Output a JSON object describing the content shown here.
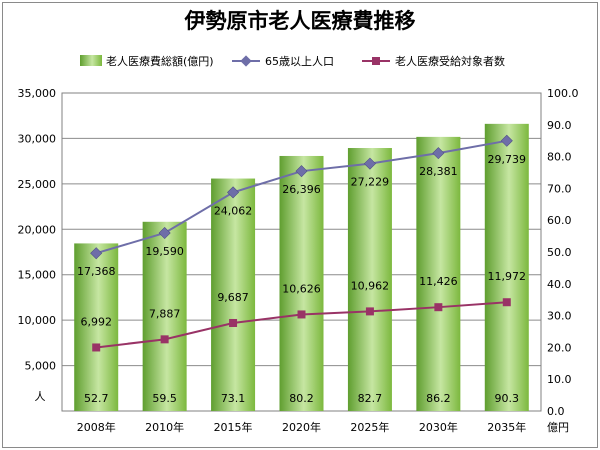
{
  "chart_data": {
    "type": "bar",
    "title": "伊勢原市老人医療費推移",
    "categories": [
      "2008年",
      "2010年",
      "2015年",
      "2020年",
      "2025年",
      "2030年",
      "2035年"
    ],
    "series": [
      {
        "name": "老人医療費総額(億円)",
        "type": "bar",
        "axis": "right",
        "values": [
          52.7,
          59.5,
          73.1,
          80.2,
          82.7,
          86.2,
          90.3
        ],
        "color": "#7cb83e"
      },
      {
        "name": "65歳以上人口",
        "type": "line",
        "axis": "left",
        "values": [
          17368,
          19590,
          24062,
          26396,
          27229,
          28381,
          29739
        ],
        "color": "#6e6ea8"
      },
      {
        "name": "老人医療受給対象者数",
        "type": "line",
        "axis": "left",
        "values": [
          6992,
          7887,
          9687,
          10626,
          10962,
          11426,
          11972
        ],
        "color": "#993366"
      }
    ],
    "y_left": {
      "label": "人",
      "range": [
        0,
        35000
      ],
      "ticks": [
        "35,000",
        "30,000",
        "25,000",
        "20,000",
        "15,000",
        "10,000",
        "5,000"
      ]
    },
    "y_right": {
      "label": "億円",
      "range": [
        0,
        100
      ],
      "ticks": [
        "100.0",
        "90.0",
        "80.0",
        "70.0",
        "60.0",
        "50.0",
        "40.0",
        "30.0",
        "20.0",
        "10.0",
        "0.0"
      ]
    },
    "grid": true,
    "legend_position": "top"
  }
}
